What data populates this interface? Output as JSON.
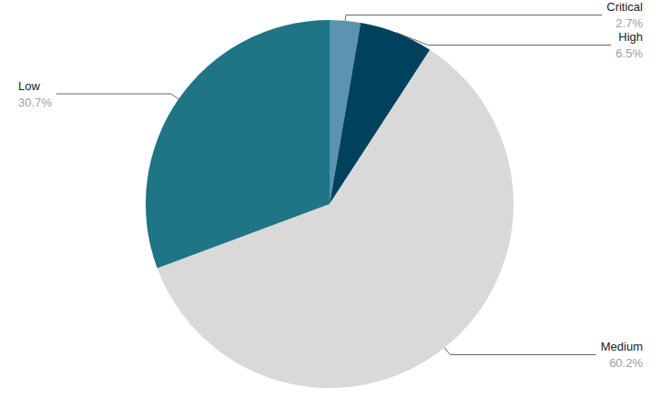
{
  "chart_data": {
    "type": "pie",
    "categories": [
      "Critical",
      "High",
      "Medium",
      "Low"
    ],
    "values": [
      2.7,
      6.5,
      60.2,
      30.7
    ],
    "value_labels": [
      "2.7%",
      "6.5%",
      "60.2%",
      "30.7%"
    ],
    "colors": [
      "#5b93b0",
      "#00425e",
      "#d9d9d9",
      "#1f7585"
    ],
    "data_labels": true
  }
}
